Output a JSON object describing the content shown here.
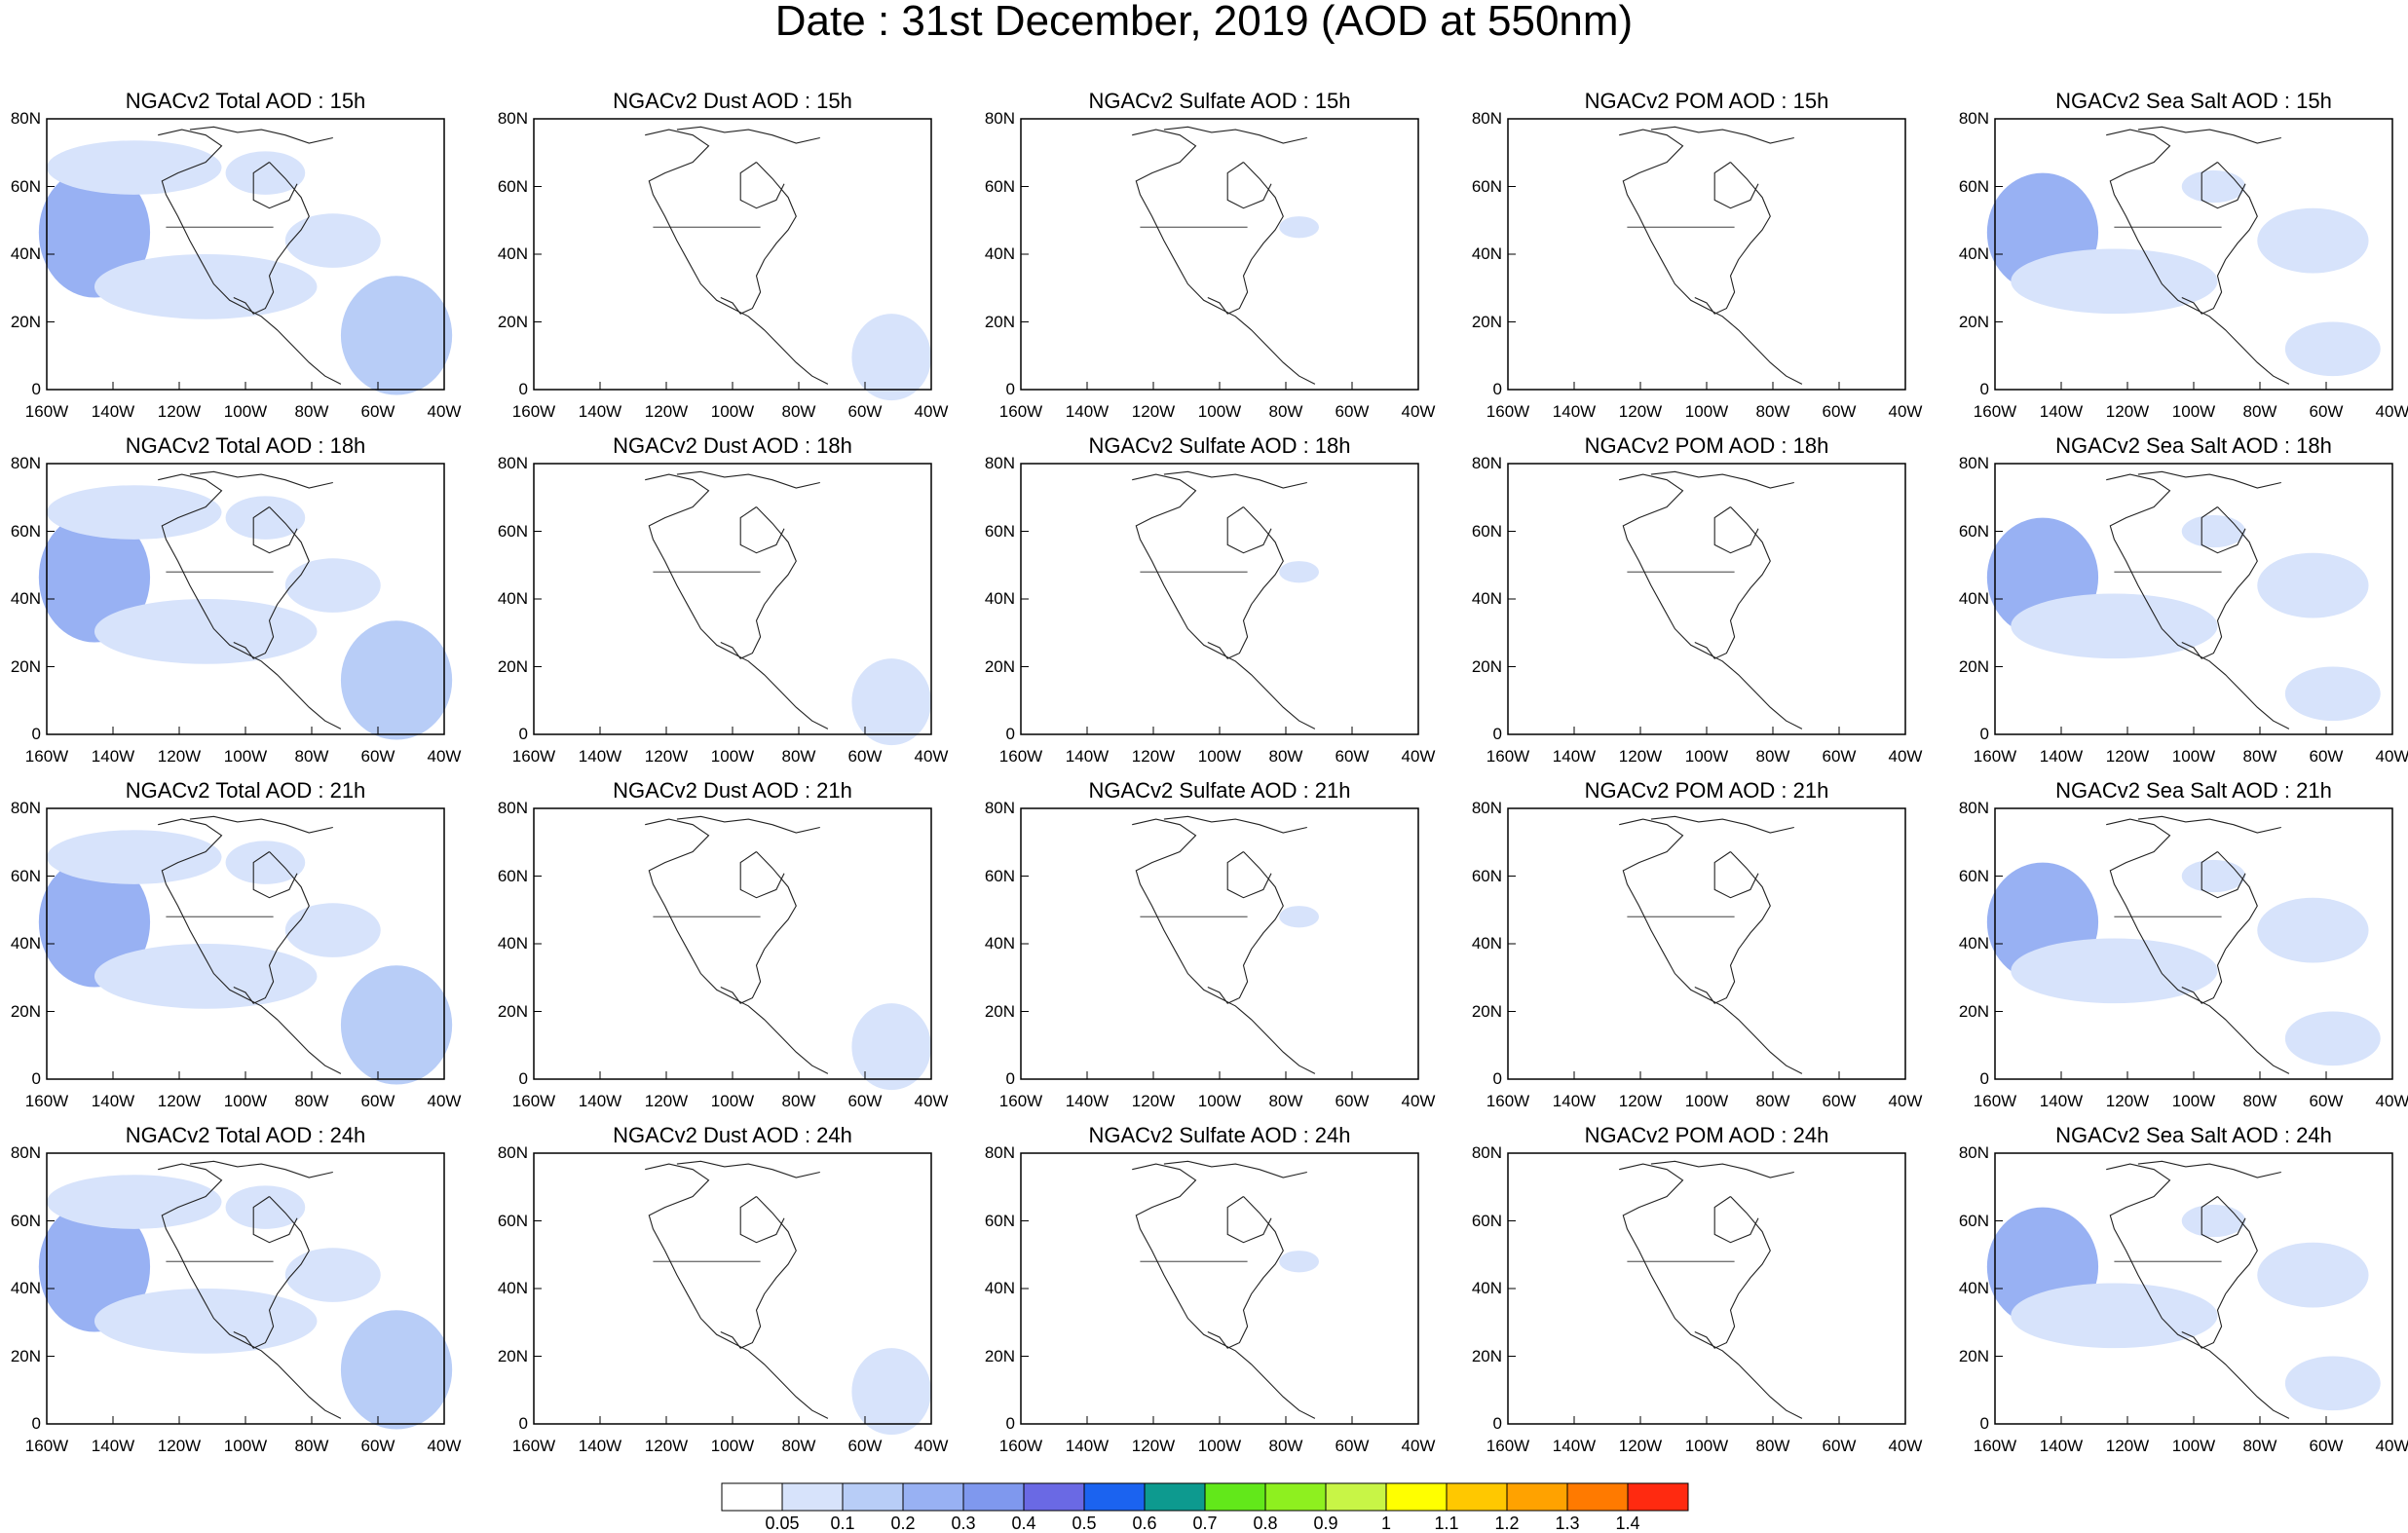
{
  "title": "Date : 31st December, 2019 (AOD at 550nm)",
  "lat_labels": [
    "80N",
    "60N",
    "40N",
    "20N",
    "0"
  ],
  "lon_labels": [
    "160W",
    "140W",
    "120W",
    "100W",
    "80W",
    "60W",
    "40W"
  ],
  "hours": [
    "15h",
    "18h",
    "21h",
    "24h"
  ],
  "panels": [
    [
      "NGACv2 Total AOD : 15h",
      "NGACv2 Dust AOD : 15h",
      "NGACv2 Sulfate AOD : 15h",
      "NGACv2 POM AOD : 15h",
      "NGACv2 Sea Salt AOD : 15h"
    ],
    [
      "NGACv2 Total AOD : 18h",
      "NGACv2 Dust AOD : 18h",
      "NGACv2 Sulfate AOD : 18h",
      "NGACv2 POM AOD : 18h",
      "NGACv2 Sea Salt AOD : 18h"
    ],
    [
      "NGACv2 Total AOD : 21h",
      "NGACv2 Dust AOD : 21h",
      "NGACv2 Sulfate AOD : 21h",
      "NGACv2 POM AOD : 21h",
      "NGACv2 Sea Salt AOD : 21h"
    ],
    [
      "NGACv2 Total AOD : 24h",
      "NGACv2 Dust AOD : 24h",
      "NGACv2 Sulfate AOD : 24h",
      "NGACv2 POM AOD : 24h",
      "NGACv2 Sea Salt  AOD : 24h"
    ]
  ],
  "colorbar": {
    "labels": [
      "0.05",
      "0.1",
      "0.2",
      "0.3",
      "0.4",
      "0.5",
      "0.6",
      "0.7",
      "0.8",
      "0.9",
      "1",
      "1.1",
      "1.2",
      "1.3",
      "1.4"
    ],
    "colors": [
      "#ffffff",
      "#d7e3fb",
      "#b8cdf7",
      "#98b1f3",
      "#7f98ee",
      "#6a69e4",
      "#1b63f0",
      "#0d9a8f",
      "#62e81a",
      "#8ef01f",
      "#c8f546",
      "#ffff00",
      "#ffc800",
      "#ffa200",
      "#ff7a00",
      "#ff2a10"
    ]
  },
  "shading_colors": {
    "light": "#d7e3fb",
    "mid": "#b8cdf7",
    "dark": "#98b1f3"
  }
}
